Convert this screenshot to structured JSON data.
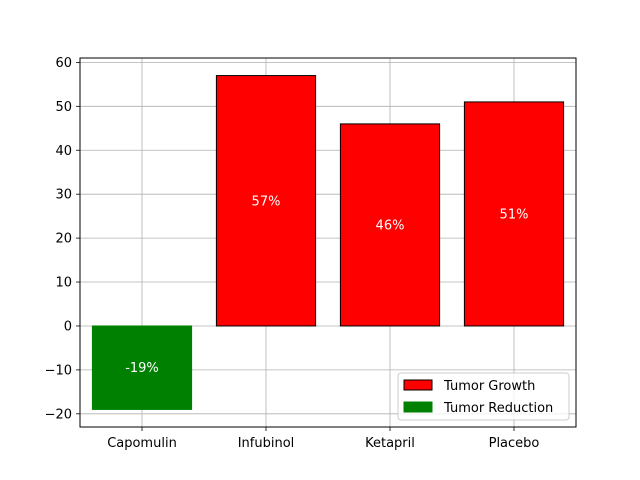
{
  "chart_data": {
    "type": "bar",
    "categories": [
      "Capomulin",
      "Infubinol",
      "Ketapril",
      "Placebo"
    ],
    "values": [
      -19,
      57,
      46,
      51
    ],
    "data_labels": [
      "-19%",
      "57%",
      "46%",
      "51%"
    ],
    "title": "",
    "xlabel": "",
    "ylabel": "",
    "ylim": [
      -23,
      61
    ],
    "yticks": [
      -20,
      -10,
      0,
      10,
      20,
      30,
      40,
      50,
      60
    ],
    "ytick_labels": [
      "−20",
      "−10",
      "0",
      "10",
      "20",
      "30",
      "40",
      "50",
      "60"
    ],
    "grid": true,
    "legend": {
      "placement": "lower-right",
      "entries": [
        {
          "label": "Tumor Growth",
          "color": "#ff0000",
          "edge": "#000000"
        },
        {
          "label": "Tumor Reduction",
          "color": "#008000",
          "edge": "#008000"
        }
      ]
    },
    "colors": {
      "growth": "#ff0000",
      "reduction": "#008000"
    }
  }
}
